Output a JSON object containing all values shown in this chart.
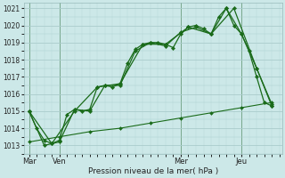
{
  "xlabel": "Pression niveau de la mer( hPa )",
  "ylim": [
    1012.5,
    1021.3
  ],
  "yticks": [
    1013,
    1014,
    1015,
    1016,
    1017,
    1018,
    1019,
    1020,
    1021
  ],
  "bg_color": "#cce8e8",
  "grid_color": "#aacccc",
  "line_color": "#1a6b1a",
  "day_labels": [
    "Mar",
    "Ven",
    "Mer",
    "Jeu"
  ],
  "day_positions": [
    0,
    12,
    60,
    84
  ],
  "xlim": [
    -2,
    100
  ],
  "vline_positions": [
    0,
    12,
    60,
    84
  ],
  "line1_x": [
    0,
    3,
    6,
    9,
    12,
    15,
    18,
    21,
    24,
    27,
    30,
    33,
    36,
    39,
    42,
    45,
    48,
    51,
    54,
    57,
    60,
    63,
    66,
    69,
    72,
    75,
    78,
    81,
    84,
    87,
    90,
    93,
    96
  ],
  "line1_y": [
    1015.0,
    1014.0,
    1013.3,
    1013.1,
    1013.3,
    1014.8,
    1015.1,
    1015.0,
    1015.1,
    1016.4,
    1016.5,
    1016.4,
    1016.6,
    1017.8,
    1018.6,
    1018.9,
    1019.0,
    1019.0,
    1018.9,
    1018.7,
    1019.5,
    1019.9,
    1020.0,
    1019.8,
    1019.5,
    1020.5,
    1021.0,
    1020.0,
    1019.5,
    1018.5,
    1017.0,
    1015.5,
    1015.3
  ],
  "line2_x": [
    0,
    6,
    12,
    18,
    24,
    30,
    36,
    42,
    48,
    54,
    60,
    66,
    72,
    78,
    84,
    90,
    96
  ],
  "line2_y": [
    1015.0,
    1013.0,
    1013.2,
    1015.1,
    1015.0,
    1016.5,
    1016.5,
    1018.5,
    1019.0,
    1018.8,
    1019.6,
    1019.9,
    1019.5,
    1021.0,
    1019.5,
    1017.5,
    1015.4
  ],
  "line3_x": [
    0,
    9,
    18,
    27,
    36,
    45,
    54,
    63,
    72,
    81,
    90,
    96
  ],
  "line3_y": [
    1015.0,
    1013.1,
    1015.0,
    1016.4,
    1016.6,
    1018.9,
    1018.9,
    1019.9,
    1019.5,
    1021.0,
    1017.5,
    1015.3
  ],
  "line4_x": [
    0,
    12,
    24,
    36,
    48,
    60,
    72,
    84,
    96
  ],
  "line4_y": [
    1013.2,
    1013.5,
    1013.8,
    1014.0,
    1014.3,
    1014.6,
    1014.9,
    1015.2,
    1015.5
  ]
}
